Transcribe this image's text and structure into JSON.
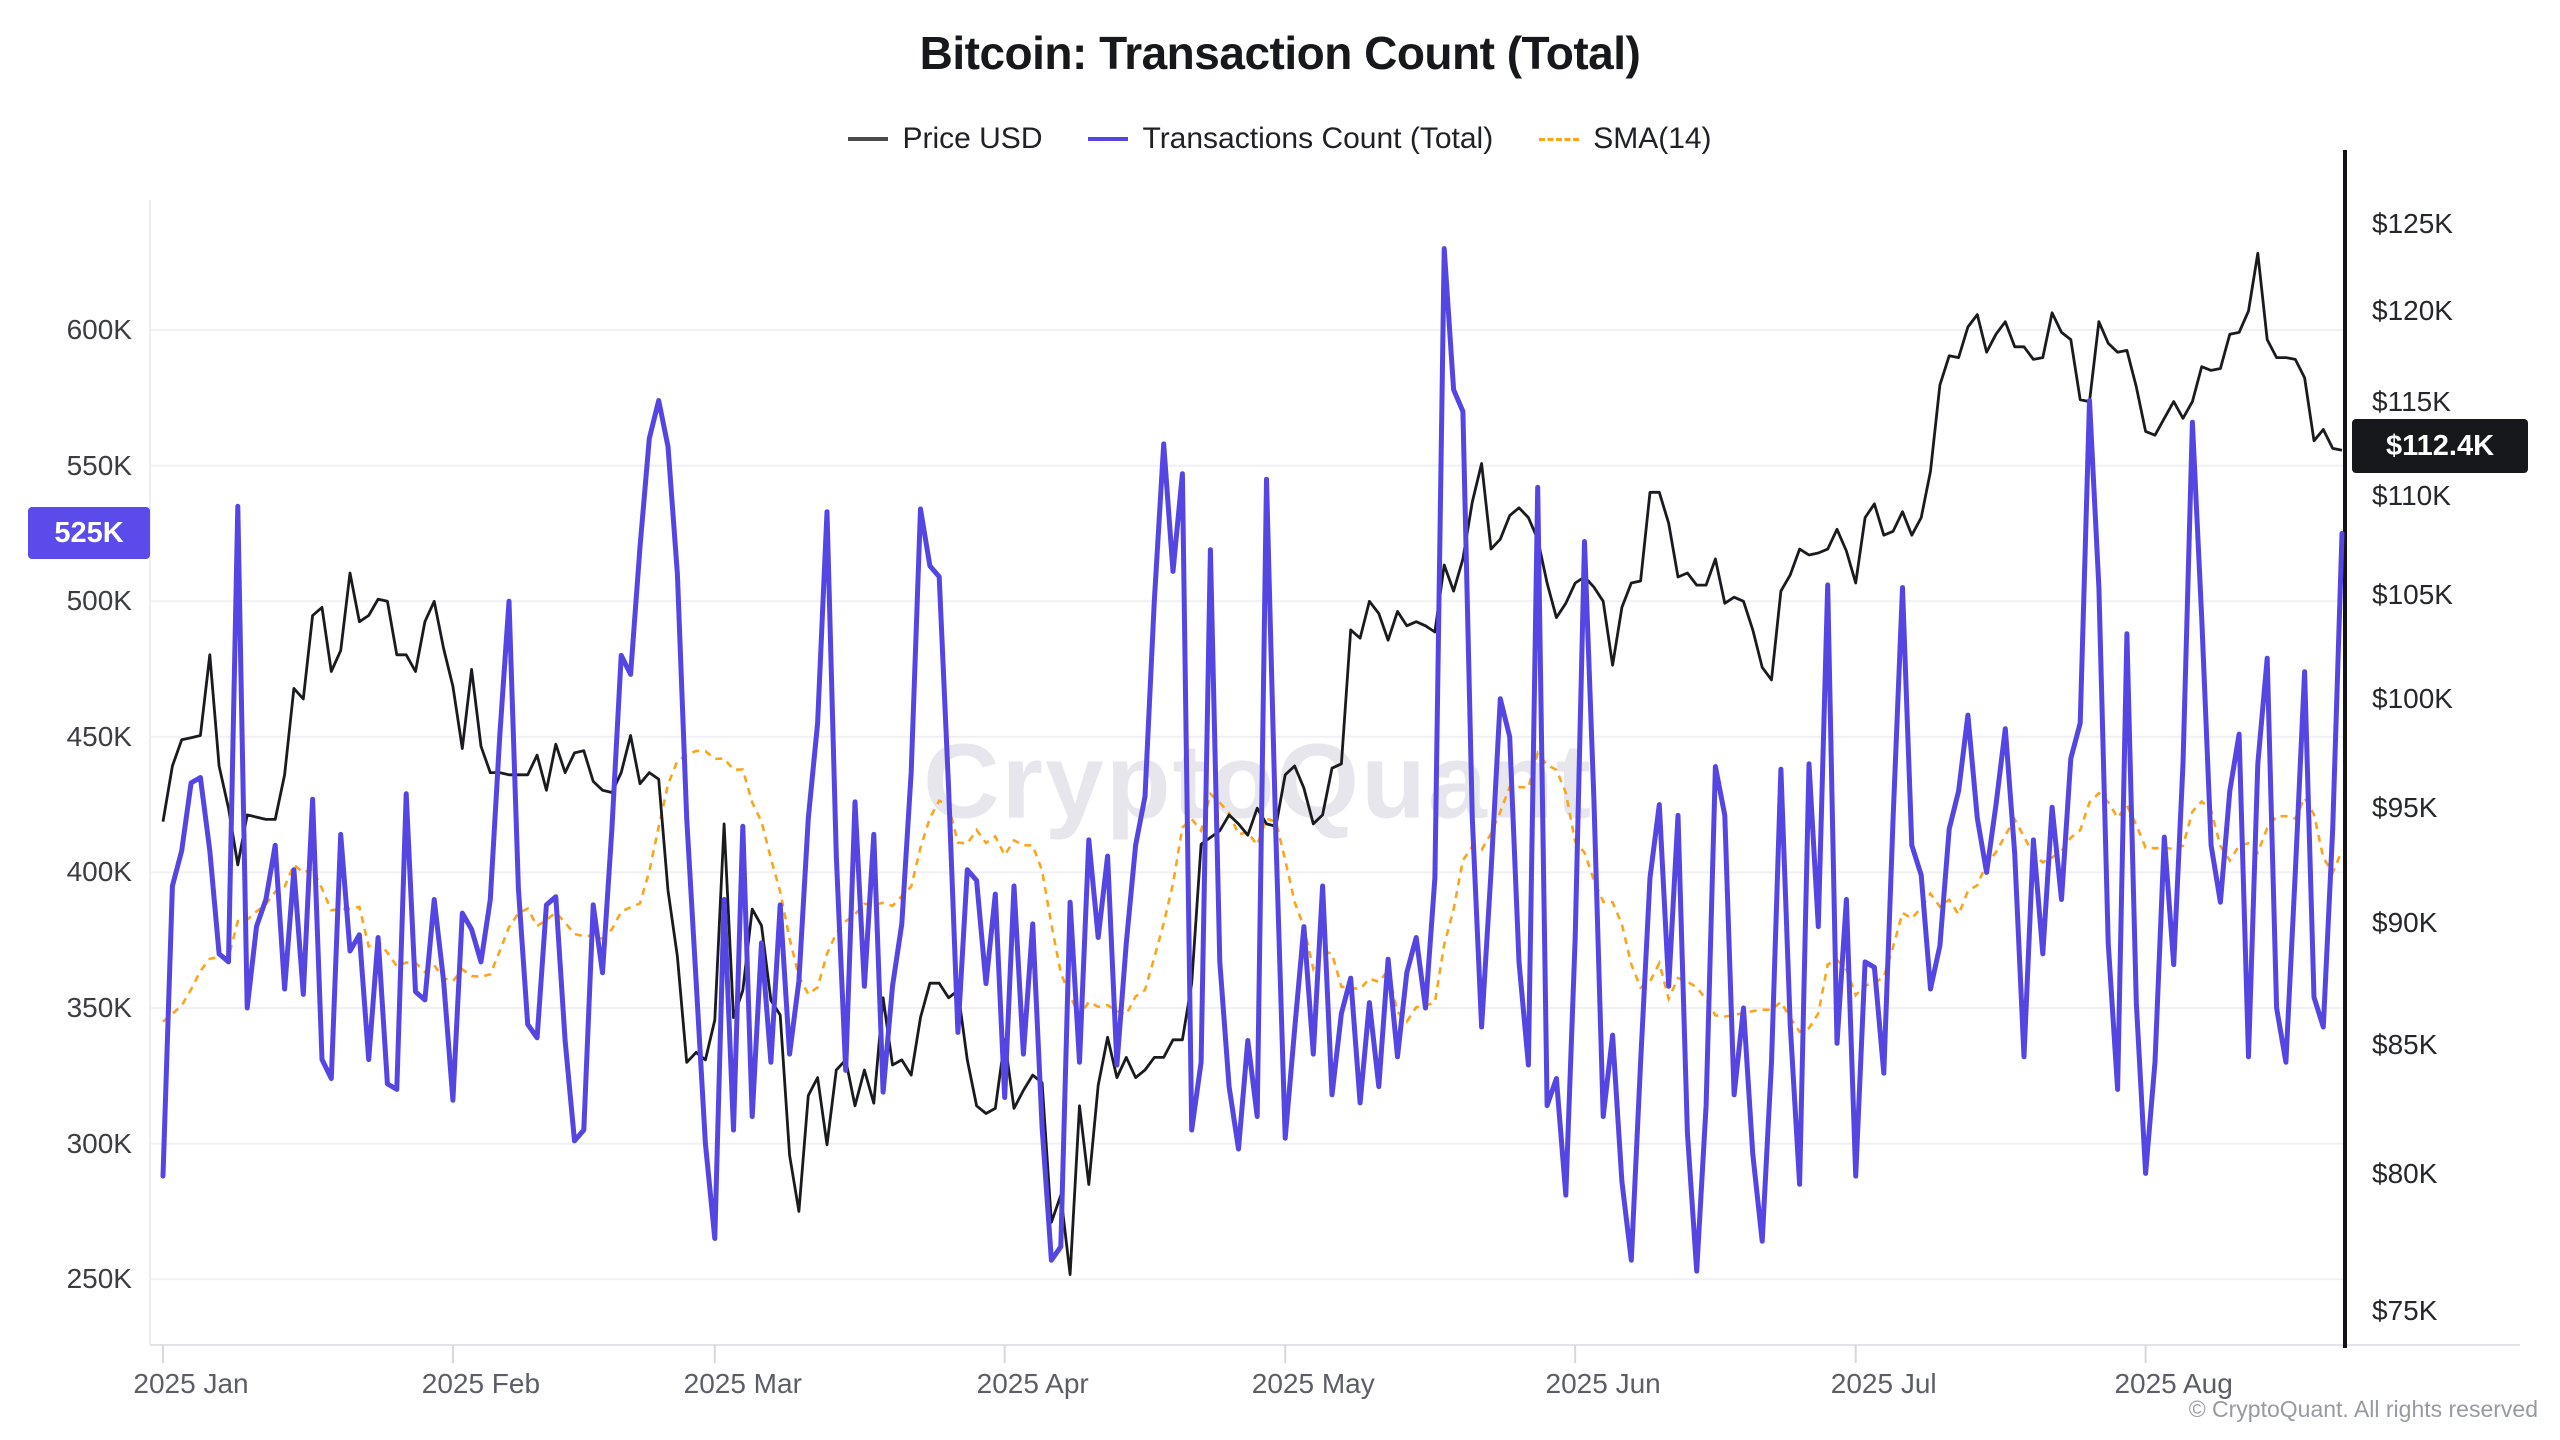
{
  "title": "Bitcoin: Transaction Count (Total)",
  "legend": [
    {
      "label": "Price USD",
      "color": "#4a4b50",
      "style": "solid"
    },
    {
      "label": "Transactions Count (Total)",
      "color": "#5546e4",
      "style": "solid"
    },
    {
      "label": "SMA(14)",
      "color": "#fba51c",
      "style": "dashed"
    }
  ],
  "left_axis": {
    "tick_labels": [
      "600K",
      "550K",
      "500K",
      "450K",
      "400K",
      "350K",
      "300K",
      "250K"
    ],
    "tick_values": [
      600,
      550,
      500,
      450,
      400,
      350,
      300,
      250
    ],
    "badge": {
      "text": "525K",
      "value": 525,
      "color": "#5b4beb"
    }
  },
  "right_axis": {
    "tick_labels": [
      "$125K",
      "$120K",
      "$115K",
      "$110K",
      "$105K",
      "$100K",
      "$95K",
      "$90K",
      "$85K",
      "$80K",
      "$75K"
    ],
    "tick_values": [
      125,
      120,
      115,
      110,
      105,
      100,
      95,
      90,
      85,
      80,
      75
    ],
    "scale": "log",
    "badge": {
      "text": "$112.4K",
      "value": 112.4,
      "color": "#17181b"
    }
  },
  "x_axis": {
    "month_ticks": [
      {
        "label": "2025 Jan",
        "day": 0
      },
      {
        "label": "2025 Feb",
        "day": 31
      },
      {
        "label": "2025 Mar",
        "day": 59
      },
      {
        "label": "2025 Apr",
        "day": 90
      },
      {
        "label": "2025 May",
        "day": 120
      },
      {
        "label": "2025 Jun",
        "day": 151
      },
      {
        "label": "2025 Jul",
        "day": 181
      },
      {
        "label": "2025 Aug",
        "day": 212
      }
    ]
  },
  "watermark": "CryptoQuant",
  "copyright": "© CryptoQuant. All rights reserved",
  "chart_data": {
    "type": "line",
    "title": "Bitcoin: Transaction Count (Total)",
    "start_date": "2025-01-01",
    "end_date": "2025-08-22",
    "x_unit": "day",
    "grid": "horizontal",
    "legend_position": "top",
    "left_axis_ticks_K": [
      250,
      300,
      350,
      400,
      450,
      500,
      550,
      600
    ],
    "right_axis_ticks_K_usd": [
      75,
      80,
      85,
      90,
      95,
      100,
      105,
      110,
      115,
      120,
      125
    ],
    "series": [
      {
        "name": "Price USD",
        "axis": "right",
        "unit": "K USD",
        "color": "#1a1b1f",
        "current_value": 112.4,
        "values": [
          94.4,
          96.9,
          98.1,
          98.2,
          98.3,
          102.1,
          96.9,
          95.0,
          92.5,
          94.7,
          94.6,
          94.5,
          94.5,
          96.5,
          100.5,
          100.0,
          104.0,
          104.4,
          101.3,
          102.3,
          106.1,
          103.7,
          104.0,
          104.8,
          104.7,
          102.1,
          102.1,
          101.3,
          103.7,
          104.7,
          102.4,
          100.6,
          97.7,
          101.4,
          97.8,
          96.6,
          96.6,
          96.5,
          96.5,
          96.5,
          97.4,
          95.8,
          97.9,
          96.6,
          97.5,
          97.6,
          96.2,
          95.8,
          95.7,
          96.6,
          98.3,
          96.1,
          96.6,
          96.3,
          91.4,
          88.6,
          84.3,
          84.7,
          84.4,
          86.0,
          94.3,
          86.1,
          87.2,
          90.6,
          89.9,
          86.8,
          86.2,
          80.7,
          78.6,
          83.0,
          83.7,
          81.1,
          84.0,
          84.4,
          82.6,
          84.0,
          82.7,
          86.9,
          84.2,
          84.4,
          83.8,
          86.1,
          87.5,
          87.5,
          86.9,
          87.2,
          84.4,
          82.6,
          82.3,
          82.5,
          85.2,
          82.5,
          83.2,
          83.8,
          83.5,
          78.2,
          79.2,
          76.3,
          82.6,
          79.6,
          83.4,
          85.3,
          83.7,
          84.5,
          83.7,
          84.0,
          84.5,
          84.5,
          85.2,
          85.2,
          87.5,
          93.4,
          93.7,
          94.0,
          94.7,
          94.3,
          93.8,
          95.0,
          94.3,
          94.2,
          96.5,
          96.9,
          95.9,
          94.3,
          94.7,
          96.8,
          97.0,
          103.3,
          102.9,
          104.7,
          104.1,
          102.8,
          104.2,
          103.5,
          103.7,
          103.5,
          103.2,
          106.5,
          105.2,
          106.8,
          109.7,
          111.7,
          107.3,
          107.8,
          109.0,
          109.4,
          108.9,
          107.8,
          105.6,
          103.9,
          104.6,
          105.6,
          105.9,
          105.4,
          104.7,
          101.6,
          104.4,
          105.6,
          105.7,
          110.2,
          110.2,
          108.6,
          105.9,
          106.1,
          105.5,
          105.5,
          106.8,
          104.6,
          104.9,
          104.7,
          103.3,
          101.5,
          100.9,
          105.2,
          106.0,
          107.3,
          107.0,
          107.1,
          107.3,
          108.3,
          107.2,
          105.6,
          108.9,
          109.6,
          108.0,
          108.2,
          109.2,
          108.0,
          108.9,
          111.3,
          115.9,
          117.5,
          117.4,
          119.1,
          119.8,
          117.7,
          118.7,
          119.4,
          118.0,
          118.0,
          117.3,
          117.4,
          119.9,
          118.8,
          118.4,
          115.1,
          115.0,
          119.4,
          118.2,
          117.7,
          117.8,
          115.8,
          113.4,
          113.2,
          114.1,
          115.0,
          114.1,
          115.0,
          116.9,
          116.7,
          116.8,
          118.7,
          118.8,
          120.0,
          123.3,
          118.4,
          117.4,
          117.4,
          117.3,
          116.3,
          112.9,
          113.5,
          112.5,
          112.4
        ]
      },
      {
        "name": "Transactions Count (Total)",
        "axis": "left",
        "unit": "K",
        "color": "#5546e4",
        "current_value": 525,
        "values": [
          288,
          395,
          408,
          433,
          435,
          408,
          370,
          367,
          535,
          350,
          380,
          390,
          410,
          357,
          401,
          355,
          427,
          331,
          324,
          414,
          371,
          377,
          331,
          376,
          322,
          320,
          429,
          356,
          353,
          390,
          360,
          316,
          385,
          379,
          367,
          390,
          450,
          500,
          394,
          344,
          339,
          388,
          391,
          338,
          301,
          305,
          388,
          363,
          416,
          480,
          473,
          520,
          560,
          574,
          557,
          510,
          420,
          360,
          300,
          265,
          390,
          305,
          417,
          310,
          374,
          330,
          388,
          333,
          360,
          420,
          455,
          533,
          406,
          327,
          426,
          358,
          414,
          319,
          358,
          381,
          437,
          534,
          513,
          509,
          431,
          341,
          401,
          397,
          359,
          392,
          317,
          395,
          333,
          381,
          306,
          257,
          262,
          389,
          330,
          412,
          376,
          406,
          329,
          374,
          410,
          428,
          500,
          558,
          511,
          547,
          305,
          330,
          519,
          367,
          321,
          298,
          338,
          310,
          545,
          413,
          302,
          342,
          380,
          333,
          395,
          318,
          348,
          361,
          315,
          352,
          321,
          368,
          332,
          363,
          376,
          350,
          398,
          630,
          578,
          570,
          420,
          343,
          400,
          464,
          450,
          367,
          329,
          542,
          314,
          324,
          281,
          376,
          522,
          427,
          310,
          340,
          286,
          257,
          330,
          398,
          425,
          358,
          421,
          304,
          253,
          314,
          439,
          421,
          318,
          350,
          296,
          264,
          330,
          438,
          344,
          285,
          440,
          380,
          506,
          337,
          390,
          288,
          367,
          365,
          326,
          420,
          505,
          410,
          399,
          357,
          373,
          416,
          430,
          458,
          420,
          400,
          425,
          453,
          407,
          332,
          412,
          370,
          424,
          390,
          442,
          455,
          574,
          505,
          374,
          320,
          488,
          352,
          289,
          330,
          413,
          366,
          440,
          566,
          494,
          410,
          389,
          430,
          451,
          332,
          440,
          479,
          350,
          330,
          400,
          474,
          354,
          343,
          416,
          525
        ]
      },
      {
        "name": "SMA(14)",
        "axis": "left",
        "unit": "K",
        "color": "#fba51c",
        "style": "dashed",
        "derived_from": "Transactions Count (Total)",
        "window": 14,
        "prewindow": [
          355,
          365,
          350,
          340,
          345,
          360,
          370,
          348,
          342,
          338,
          352,
          346,
          331
        ]
      }
    ]
  }
}
